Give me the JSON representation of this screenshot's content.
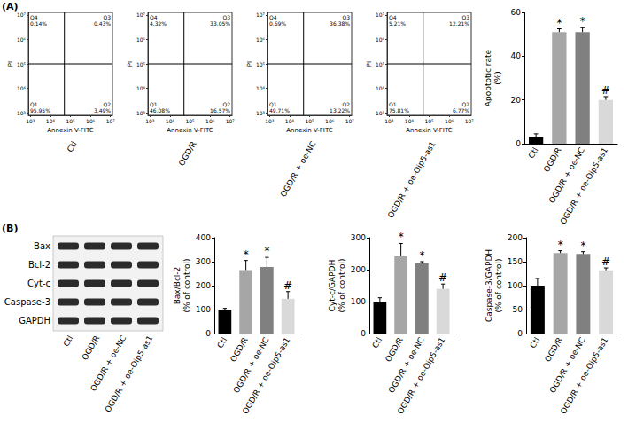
{
  "panel_labels": [
    "(A)",
    "(B)"
  ],
  "blot": {
    "proteins": [
      "Bax",
      "Bcl-2",
      "Cyt-c",
      "Caspase-3",
      "GAPDH"
    ],
    "lanes": [
      "Ctl",
      "OGD/R",
      "OGD/R + oe-NC",
      "OGD/R + oe-Oip5-as1"
    ]
  },
  "chart_data": [
    {
      "type": "scatter",
      "title": "Ctl",
      "x_label": "Annexin V-FITC",
      "y_label": "PI",
      "xlim": [
        2.9,
        7.1
      ],
      "ylim": [
        2.9,
        7.1
      ],
      "xticks": [
        {
          "value": 3,
          "label": "10³"
        },
        {
          "value": 4,
          "label": "10⁴"
        },
        {
          "value": 5,
          "label": "10⁵"
        },
        {
          "value": 6,
          "label": "10⁶"
        },
        {
          "value": 7,
          "label": "10⁷"
        }
      ],
      "yticks": [
        {
          "value": 3,
          "label": "10³"
        },
        {
          "value": 4,
          "label": "10⁴"
        },
        {
          "value": 5,
          "label": "10⁵"
        },
        {
          "value": 6,
          "label": "10⁶"
        },
        {
          "value": 7,
          "label": "10⁷"
        }
      ],
      "gates": {
        "x": 4.7,
        "y": 5.0
      },
      "quadrants": [
        {
          "name": "Q4",
          "value": 0.14,
          "label": "0.14%"
        },
        {
          "name": "Q3",
          "value": 0.43,
          "label": "0.43%"
        },
        {
          "name": "Q1",
          "value": 95.95,
          "label": "95.95%"
        },
        {
          "name": "Q2",
          "value": 3.49,
          "label": "3.49%"
        }
      ]
    },
    {
      "type": "scatter",
      "title": "OGD/R",
      "x_label": "Annexin V-FITC",
      "y_label": "PI",
      "xlim": [
        2.9,
        7.1
      ],
      "ylim": [
        2.9,
        7.1
      ],
      "xticks": [
        {
          "value": 3,
          "label": "10³"
        },
        {
          "value": 4,
          "label": "10⁴"
        },
        {
          "value": 5,
          "label": "10⁵"
        },
        {
          "value": 6,
          "label": "10⁶"
        },
        {
          "value": 7,
          "label": "10⁷"
        }
      ],
      "yticks": [
        {
          "value": 3,
          "label": "10³"
        },
        {
          "value": 4,
          "label": "10⁴"
        },
        {
          "value": 5,
          "label": "10⁵"
        },
        {
          "value": 6,
          "label": "10⁶"
        },
        {
          "value": 7,
          "label": "10⁷"
        }
      ],
      "gates": {
        "x": 4.7,
        "y": 5.0
      },
      "quadrants": [
        {
          "name": "Q4",
          "value": 4.32,
          "label": "4.32%"
        },
        {
          "name": "Q3",
          "value": 33.05,
          "label": "33.05%"
        },
        {
          "name": "Q1",
          "value": 46.08,
          "label": "46.08%"
        },
        {
          "name": "Q2",
          "value": 16.57,
          "label": "16.57%"
        }
      ]
    },
    {
      "type": "scatter",
      "title": "OGD/R + oe-NC",
      "x_label": "Annexin V-FITC",
      "y_label": "PI",
      "xlim": [
        2.9,
        7.1
      ],
      "ylim": [
        2.9,
        7.1
      ],
      "xticks": [
        {
          "value": 3,
          "label": "10³"
        },
        {
          "value": 4,
          "label": "10⁴"
        },
        {
          "value": 5,
          "label": "10⁵"
        },
        {
          "value": 6,
          "label": "10⁶"
        },
        {
          "value": 7,
          "label": "10⁷"
        }
      ],
      "yticks": [
        {
          "value": 3,
          "label": "10³"
        },
        {
          "value": 4,
          "label": "10⁴"
        },
        {
          "value": 5,
          "label": "10⁵"
        },
        {
          "value": 6,
          "label": "10⁶"
        },
        {
          "value": 7,
          "label": "10⁷"
        }
      ],
      "gates": {
        "x": 4.7,
        "y": 5.0
      },
      "quadrants": [
        {
          "name": "Q4",
          "value": 0.69,
          "label": "0.69%"
        },
        {
          "name": "Q3",
          "value": 36.38,
          "label": "36.38%"
        },
        {
          "name": "Q1",
          "value": 49.71,
          "label": "49.71%"
        },
        {
          "name": "Q2",
          "value": 13.22,
          "label": "13.22%"
        }
      ]
    },
    {
      "type": "scatter",
      "title": "OGD/R + oe-Oip5-as1",
      "x_label": "Annexin V-FITC",
      "y_label": "PI",
      "xlim": [
        2.9,
        7.1
      ],
      "ylim": [
        2.9,
        7.1
      ],
      "xticks": [
        {
          "value": 3,
          "label": "10³"
        },
        {
          "value": 4,
          "label": "10⁴"
        },
        {
          "value": 5,
          "label": "10⁵"
        },
        {
          "value": 6,
          "label": "10⁶"
        },
        {
          "value": 7,
          "label": "10⁷"
        }
      ],
      "yticks": [
        {
          "value": 3,
          "label": "10³"
        },
        {
          "value": 4,
          "label": "10⁴"
        },
        {
          "value": 5,
          "label": "10⁵"
        },
        {
          "value": 6,
          "label": "10⁶"
        },
        {
          "value": 7,
          "label": "10⁷"
        }
      ],
      "gates": {
        "x": 4.7,
        "y": 5.0
      },
      "quadrants": [
        {
          "name": "Q4",
          "value": 5.21,
          "label": "5.21%"
        },
        {
          "name": "Q3",
          "value": 12.21,
          "label": "12.21%"
        },
        {
          "name": "Q1",
          "value": 75.81,
          "label": "75.81%"
        },
        {
          "name": "Q2",
          "value": 6.77,
          "label": "6.77%"
        }
      ]
    },
    {
      "type": "bar",
      "y_label": "Apoptotic rate\n(%)",
      "categories": [
        "Ctl",
        "OGD/R",
        "OGD/R + oe-NC",
        "OGD/R + oe-Oip5-as1"
      ],
      "values": [
        3,
        51,
        51,
        20
      ],
      "errors": [
        1.5,
        1.5,
        2,
        1.5
      ],
      "annotations": [
        null,
        "*",
        "*",
        "#"
      ],
      "colors": [
        "#000000",
        "#a6a6a6",
        "#808080",
        "#d9d9d9"
      ],
      "ylim": [
        0,
        60
      ],
      "yticks": [
        0,
        20,
        40,
        60
      ],
      "grid": false
    },
    {
      "type": "bar",
      "y_label": "Bax/Bcl-2\n(% of control)",
      "categories": [
        "Ctl",
        "OGD/R",
        "OGD/R + oe-NC",
        "OGD/R + oe-Oip5-as1"
      ],
      "values": [
        100,
        265,
        278,
        145
      ],
      "errors": [
        5,
        40,
        40,
        30
      ],
      "annotations": [
        null,
        "*",
        "*",
        "#"
      ],
      "colors": [
        "#000000",
        "#a6a6a6",
        "#808080",
        "#d9d9d9"
      ],
      "ylim": [
        0,
        400
      ],
      "yticks": [
        0,
        100,
        200,
        300,
        400
      ],
      "grid": false
    },
    {
      "type": "bar",
      "y_label": "Cyt-c/GAPDH\n(% of control)",
      "categories": [
        "Ctl",
        "OGD/R",
        "OGD/R + oe-NC",
        "OGD/R + oe-Oip5-as1"
      ],
      "values": [
        100,
        242,
        220,
        140
      ],
      "errors": [
        12,
        40,
        5,
        15
      ],
      "annotations": [
        null,
        "*",
        "*",
        "#"
      ],
      "colors": [
        "#000000",
        "#a6a6a6",
        "#808080",
        "#d9d9d9"
      ],
      "ylim": [
        0,
        300
      ],
      "yticks": [
        0,
        100,
        200,
        300
      ],
      "grid": false
    },
    {
      "type": "bar",
      "y_label": "Caspase-3/GAPDH\n(% of control)",
      "categories": [
        "Ctl",
        "OGD/R",
        "OGD/R + oe-NC",
        "OGD/R + oe-Oip5-as1"
      ],
      "values": [
        100,
        168,
        166,
        132
      ],
      "errors": [
        15,
        5,
        5,
        5
      ],
      "annotations": [
        null,
        "*",
        "*",
        "#"
      ],
      "colors": [
        "#000000",
        "#a6a6a6",
        "#808080",
        "#d9d9d9"
      ],
      "ylim": [
        0,
        200
      ],
      "yticks": [
        0,
        50,
        100,
        150,
        200
      ],
      "grid": false
    }
  ]
}
